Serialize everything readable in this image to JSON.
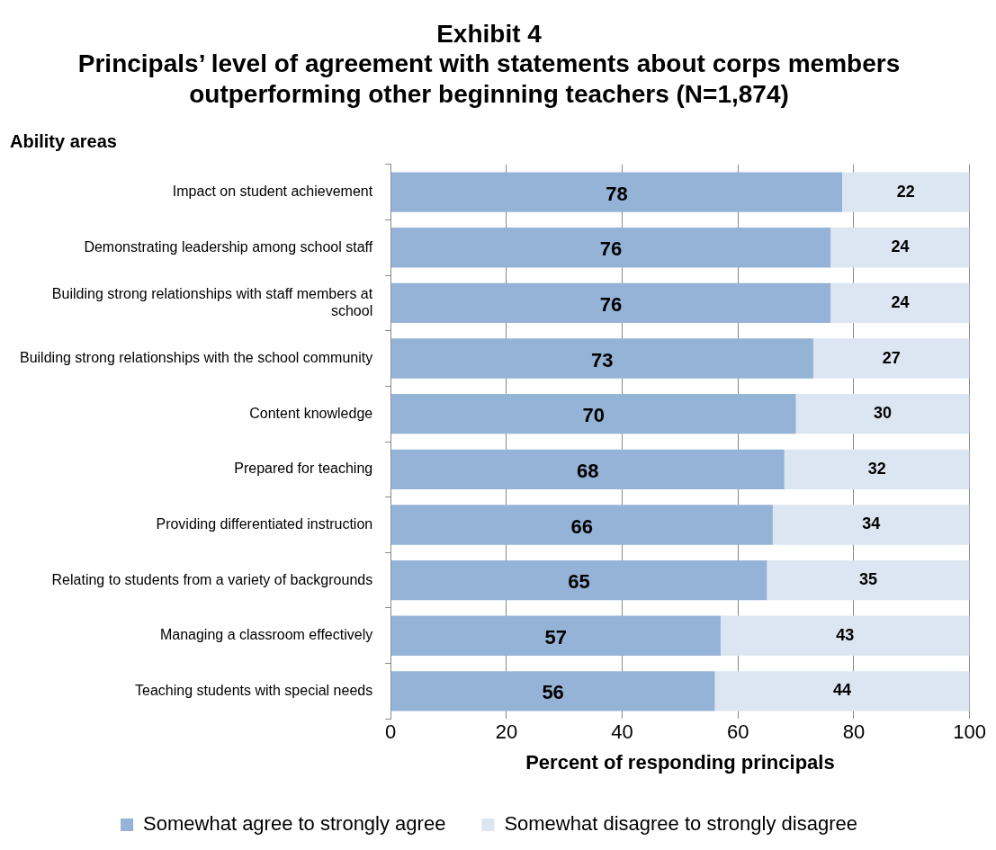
{
  "chart_data": {
    "type": "bar",
    "orientation": "horizontal",
    "stacked": true,
    "title": "Exhibit 4",
    "subtitle": "Principals’ level of agreement with statements about corps members outperforming other beginning teachers (N=1,874)",
    "ylabel": "Ability areas",
    "xlabel": "Percent of responding principals",
    "categories": [
      "Impact on student achievement",
      "Demonstrating leadership among school staff",
      "Building strong relationships with staff members at school",
      "Building strong relationships with the school community",
      "Content knowledge",
      "Prepared for teaching",
      "Providing differentiated instruction",
      "Relating to students from a variety of backgrounds",
      "Managing a classroom effectively",
      "Teaching students with special needs"
    ],
    "series": [
      {
        "name": "Somewhat agree to strongly agree",
        "color": "#95b3d7",
        "values": [
          78,
          76,
          76,
          73,
          70,
          68,
          66,
          65,
          57,
          56
        ]
      },
      {
        "name": "Somewhat disagree to strongly disagree",
        "color": "#dce6f2",
        "values": [
          22,
          24,
          24,
          27,
          30,
          32,
          34,
          35,
          43,
          44
        ]
      }
    ],
    "xlim": [
      0,
      100
    ],
    "xticks": [
      0,
      20,
      40,
      60,
      80,
      100
    ],
    "grid": "x",
    "legend": "bottom",
    "data_labels": true
  }
}
